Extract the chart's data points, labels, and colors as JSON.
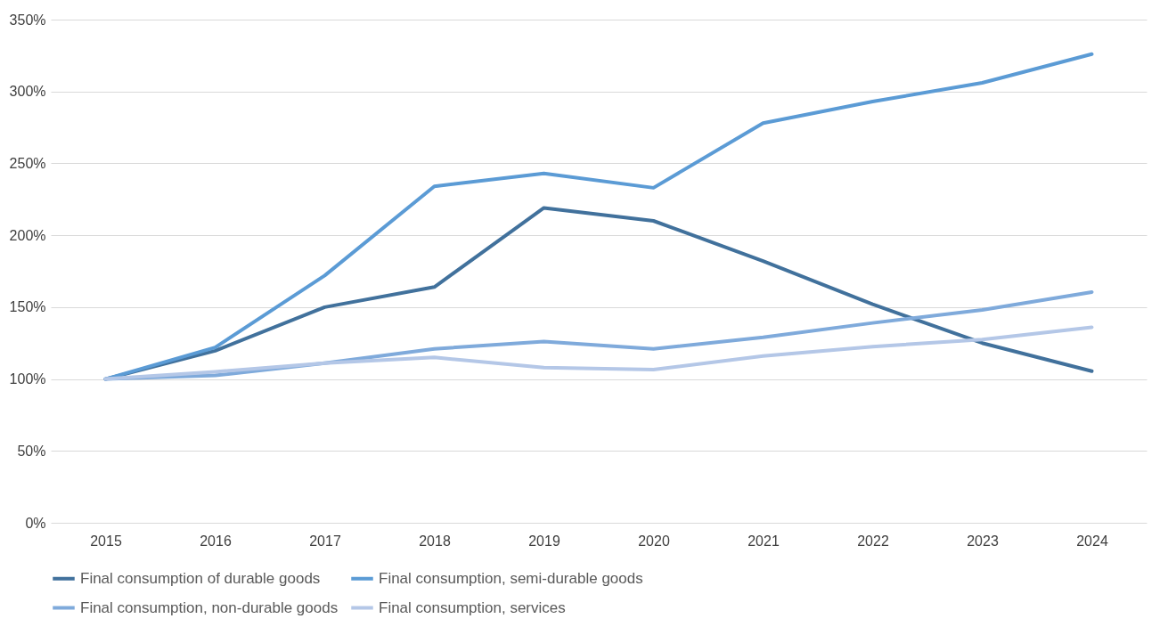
{
  "chart_data": {
    "type": "line",
    "categories": [
      "2015",
      "2016",
      "2017",
      "2018",
      "2019",
      "2020",
      "2021",
      "2022",
      "2023",
      "2024"
    ],
    "series": [
      {
        "name": "Final consumption of durable goods",
        "color": "#41719c",
        "values": [
          100,
          119.6,
          150,
          164,
          219,
          210,
          182,
          152,
          125,
          105.5
        ]
      },
      {
        "name": "Final consumption, semi-durable goods",
        "color": "#5b9bd5",
        "values": [
          100,
          122,
          172,
          234,
          243,
          233,
          278,
          293,
          306,
          326
        ]
      },
      {
        "name": "Final consumption, non-durable goods",
        "color": "#7faadb",
        "values": [
          100,
          102.5,
          111,
          121,
          126,
          121,
          129,
          139,
          148,
          160.5
        ]
      },
      {
        "name": "Final consumption, services",
        "color": "#b4c7e7",
        "values": [
          100,
          105,
          111,
          115,
          108,
          106.5,
          116,
          122.5,
          127.5,
          136
        ]
      }
    ],
    "ylim": [
      0,
      350
    ],
    "yticks": [
      {
        "value": 0,
        "label": "0%"
      },
      {
        "value": 50,
        "label": "50%"
      },
      {
        "value": 100,
        "label": "100%"
      },
      {
        "value": 150,
        "label": "150%"
      },
      {
        "value": 200,
        "label": "200%"
      },
      {
        "value": 250,
        "label": "250%"
      },
      {
        "value": 300,
        "label": "300%"
      },
      {
        "value": 350,
        "label": "350%"
      }
    ],
    "grid": "y",
    "legend": "bottom",
    "marker": "none",
    "line_style": "solid"
  }
}
